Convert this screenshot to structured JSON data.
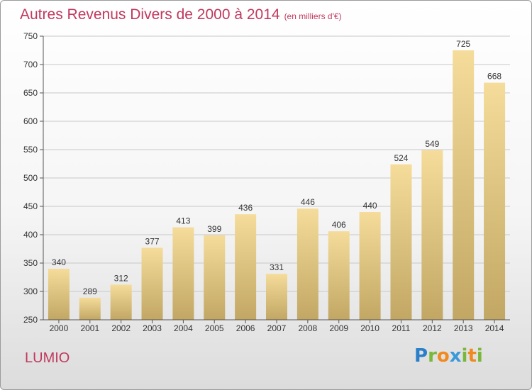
{
  "header": {
    "title": "Autres Revenus Divers de 2000 à 2014",
    "unit": "(en milliers d'€)"
  },
  "footer": {
    "place": "LUMIO",
    "logo_letters": [
      "P",
      "r",
      "o",
      "x",
      "i",
      "t",
      "i"
    ]
  },
  "colors": {
    "title": "#c0395e",
    "bar_top": "#f5dc9a",
    "bar_bottom": "#c2a764",
    "grid": "#c8c8c8"
  },
  "chart_data": {
    "type": "bar",
    "title": "Autres Revenus Divers de 2000 à 2014",
    "ylabel": "",
    "xlabel": "",
    "categories": [
      "2000",
      "2001",
      "2002",
      "2003",
      "2004",
      "2005",
      "2006",
      "2007",
      "2008",
      "2009",
      "2010",
      "2011",
      "2012",
      "2013",
      "2014"
    ],
    "values": [
      340,
      289,
      312,
      377,
      413,
      399,
      436,
      331,
      446,
      406,
      440,
      524,
      549,
      725,
      668
    ],
    "ylim": [
      250,
      750
    ],
    "yticks": [
      250,
      300,
      350,
      400,
      450,
      500,
      550,
      600,
      650,
      700,
      750
    ],
    "grid": true
  }
}
